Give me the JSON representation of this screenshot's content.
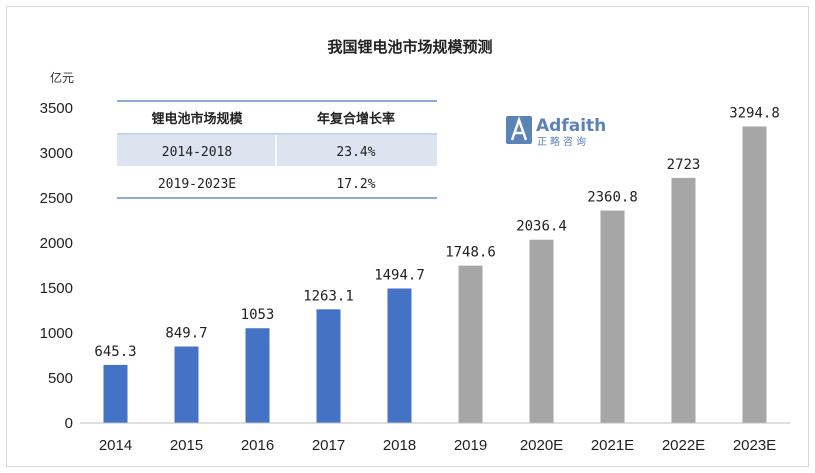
{
  "chart_data": {
    "type": "bar",
    "title": "我国锂电池市场规模预测",
    "unit_label": "亿元",
    "categories": [
      "2014",
      "2015",
      "2016",
      "2017",
      "2018",
      "2019",
      "2020E",
      "2021E",
      "2022E",
      "2023E"
    ],
    "values": [
      645.3,
      849.7,
      1053,
      1263.1,
      1494.7,
      1748.6,
      2036.4,
      2360.8,
      2723,
      3294.8
    ],
    "value_labels": [
      "645.3",
      "849.7",
      "1053",
      "1263.1",
      "1494.7",
      "1748.6",
      "2036.4",
      "2360.8",
      "2723",
      "3294.8"
    ],
    "yticks": [
      "0",
      "500",
      "1000",
      "1500",
      "2000",
      "2500",
      "3000",
      "3500"
    ],
    "ylim": [
      0,
      3500
    ],
    "grid": false,
    "series_colors": {
      "actual": "#4472c4",
      "forecast": "#a6a6a6",
      "actual_count": 5
    }
  },
  "cagr_table": {
    "headers": [
      "锂电池市场规模",
      "年复合增长率"
    ],
    "rows": [
      [
        "2014-2018",
        "23.4%"
      ],
      [
        "2019-2023E",
        "17.2%"
      ]
    ],
    "line_color": "#8eaadb",
    "stripe_color": "#dce4f0"
  },
  "watermark": {
    "brand": "Adfaith",
    "sub": "正略咨询",
    "icon": "adfaith-logo-icon"
  }
}
